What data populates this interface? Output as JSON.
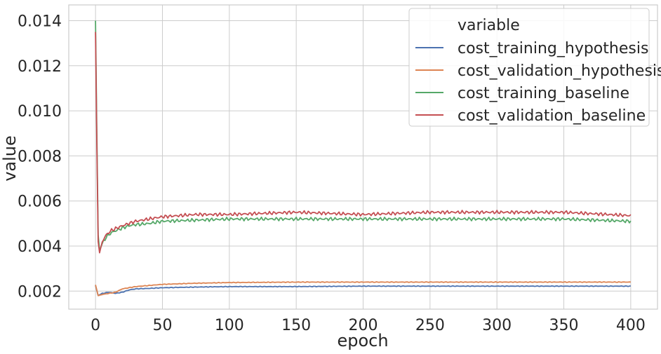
{
  "chart_data": {
    "type": "line",
    "title": "",
    "xlabel": "epoch",
    "ylabel": "value",
    "xlim": [
      -20,
      420
    ],
    "ylim": [
      0.0012,
      0.0147
    ],
    "xticks": [
      0,
      50,
      100,
      150,
      200,
      250,
      300,
      350,
      400
    ],
    "yticks": [
      0.002,
      0.004,
      0.006,
      0.008,
      0.01,
      0.012,
      0.014
    ],
    "ytick_labels": [
      "0.002",
      "0.004",
      "0.006",
      "0.008",
      "0.010",
      "0.012",
      "0.014"
    ],
    "xtick_labels": [
      "0",
      "50",
      "100",
      "150",
      "200",
      "250",
      "300",
      "350",
      "400"
    ],
    "grid": true,
    "legend_title": "variable",
    "legend_position": "top-right",
    "series": [
      {
        "name": "cost_training_hypothesis",
        "color": "#4c72b0",
        "points": [
          [
            0,
            0.00225
          ],
          [
            2,
            0.0018
          ],
          [
            5,
            0.0019
          ],
          [
            10,
            0.00195
          ],
          [
            15,
            0.0019
          ],
          [
            20,
            0.00195
          ],
          [
            25,
            0.00205
          ],
          [
            30,
            0.0021
          ],
          [
            40,
            0.00212
          ],
          [
            50,
            0.00215
          ],
          [
            75,
            0.00218
          ],
          [
            100,
            0.0022
          ],
          [
            150,
            0.0022
          ],
          [
            200,
            0.00222
          ],
          [
            250,
            0.00222
          ],
          [
            300,
            0.00222
          ],
          [
            350,
            0.00222
          ],
          [
            400,
            0.00222
          ]
        ]
      },
      {
        "name": "cost_validation_hypothesis",
        "color": "#dd8452",
        "points": [
          [
            0,
            0.00228
          ],
          [
            2,
            0.0018
          ],
          [
            5,
            0.00185
          ],
          [
            10,
            0.0019
          ],
          [
            15,
            0.00195
          ],
          [
            20,
            0.0021
          ],
          [
            25,
            0.00215
          ],
          [
            30,
            0.0022
          ],
          [
            40,
            0.00225
          ],
          [
            50,
            0.0023
          ],
          [
            75,
            0.00235
          ],
          [
            100,
            0.00238
          ],
          [
            150,
            0.0024
          ],
          [
            200,
            0.0024
          ],
          [
            250,
            0.0024
          ],
          [
            300,
            0.0024
          ],
          [
            350,
            0.0024
          ],
          [
            400,
            0.0024
          ]
        ]
      },
      {
        "name": "cost_training_baseline",
        "color": "#55a868",
        "points": [
          [
            0,
            0.014
          ],
          [
            1,
            0.009
          ],
          [
            2,
            0.0045
          ],
          [
            3,
            0.0038
          ],
          [
            5,
            0.0041
          ],
          [
            8,
            0.0044
          ],
          [
            12,
            0.0046
          ],
          [
            16,
            0.0047
          ],
          [
            20,
            0.0048
          ],
          [
            25,
            0.0049
          ],
          [
            30,
            0.00495
          ],
          [
            40,
            0.005
          ],
          [
            50,
            0.0051
          ],
          [
            75,
            0.00515
          ],
          [
            100,
            0.0052
          ],
          [
            150,
            0.0052
          ],
          [
            200,
            0.0052
          ],
          [
            250,
            0.0052
          ],
          [
            300,
            0.0052
          ],
          [
            350,
            0.0052
          ],
          [
            400,
            0.0051
          ]
        ]
      },
      {
        "name": "cost_validation_baseline",
        "color": "#c44e52",
        "points": [
          [
            0,
            0.0135
          ],
          [
            1,
            0.0085
          ],
          [
            2,
            0.0042
          ],
          [
            3,
            0.0037
          ],
          [
            5,
            0.0042
          ],
          [
            8,
            0.0045
          ],
          [
            12,
            0.0047
          ],
          [
            16,
            0.0048
          ],
          [
            20,
            0.0049
          ],
          [
            25,
            0.005
          ],
          [
            30,
            0.0051
          ],
          [
            40,
            0.0052
          ],
          [
            50,
            0.0053
          ],
          [
            75,
            0.0054
          ],
          [
            100,
            0.0054
          ],
          [
            150,
            0.0055
          ],
          [
            200,
            0.0054
          ],
          [
            250,
            0.0055
          ],
          [
            300,
            0.0055
          ],
          [
            350,
            0.0055
          ],
          [
            400,
            0.00535
          ]
        ]
      }
    ]
  }
}
